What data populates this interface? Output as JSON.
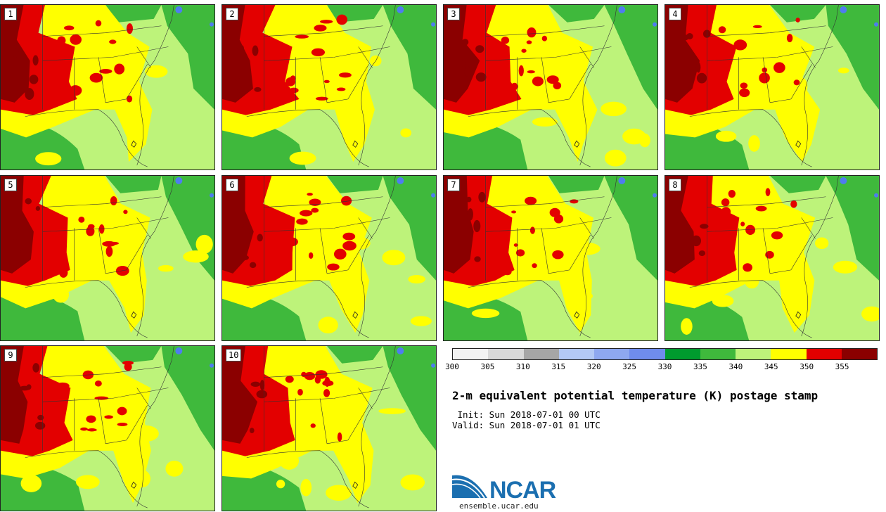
{
  "title": "2-m equivalent potential temperature (K) postage stamp",
  "init": " Init: Sun 2018-07-01 00 UTC",
  "valid": "Valid: Sun 2018-07-01 01 UTC",
  "panels": [
    "1",
    "2",
    "3",
    "4",
    "5",
    "6",
    "7",
    "8",
    "9",
    "10"
  ],
  "colorbar": {
    "ticks": [
      "300",
      "305",
      "310",
      "315",
      "320",
      "325",
      "330",
      "335",
      "340",
      "345",
      "350",
      "355"
    ],
    "colors": [
      "#f2f2f2",
      "#d9d9d9",
      "#a6a6a6",
      "#b3c9f5",
      "#8ea8f0",
      "#6f8cec",
      "#009b2e",
      "#3fb93c",
      "#bdf37a",
      "#ffff00",
      "#e30000",
      "#8b0000"
    ]
  },
  "logo": {
    "name": "NCAR",
    "url": "ensemble.ucar.edu",
    "color": "#1b6fb0"
  }
}
